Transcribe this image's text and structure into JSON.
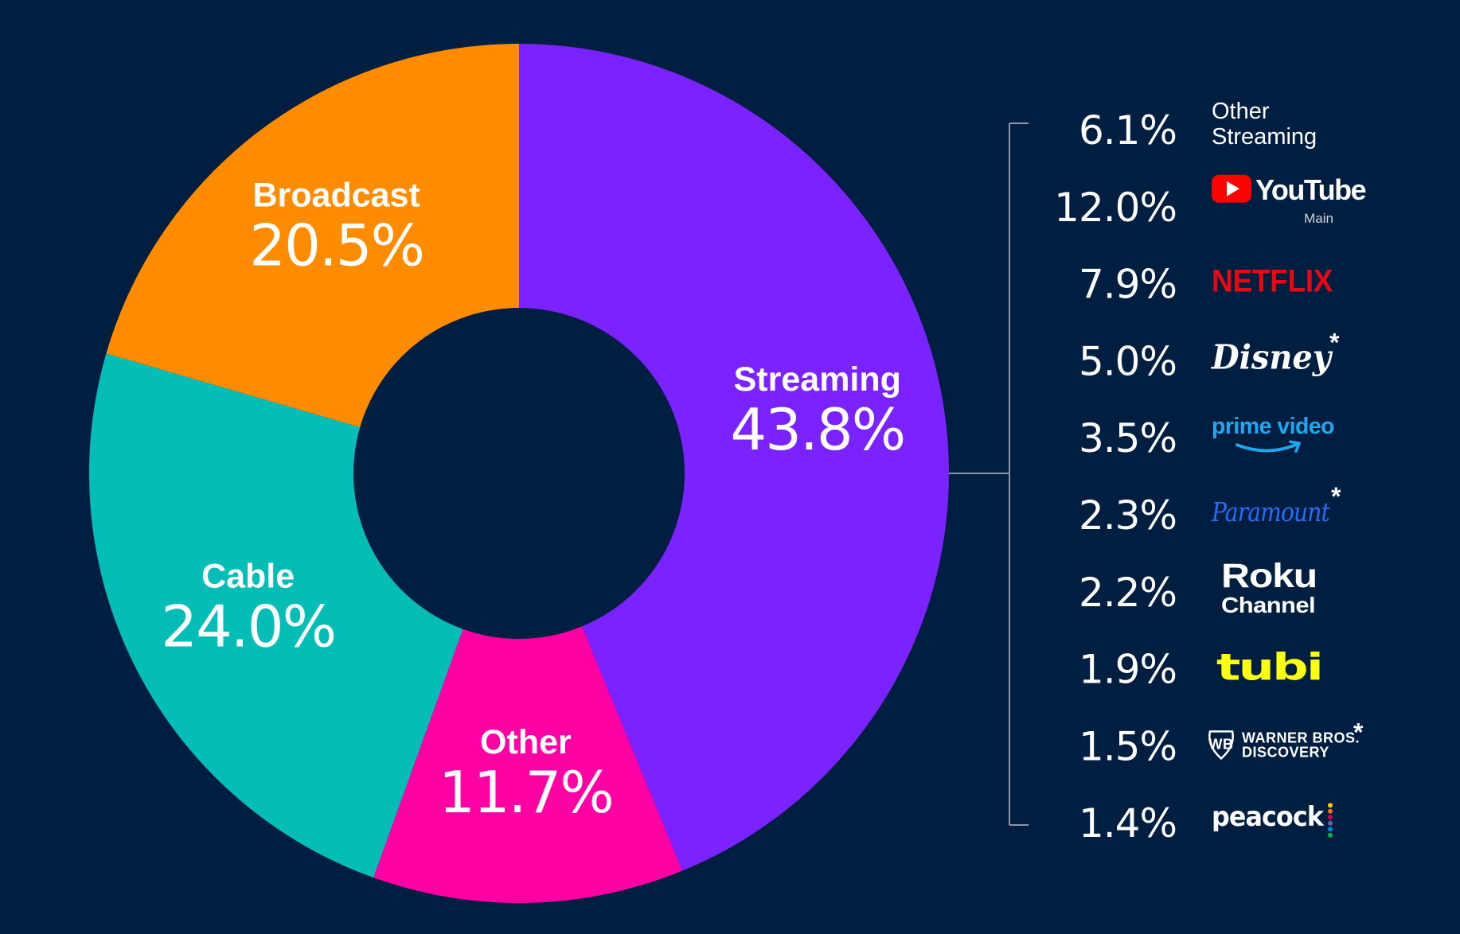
{
  "colors": {
    "background": "#001E40",
    "streaming": "#7A22FF",
    "other": "#FF00A4",
    "cable": "#04BDB7",
    "broadcast": "#FF8C00",
    "bracket": "#8A98AE"
  },
  "chart_data": {
    "type": "pie",
    "style": "donut",
    "start": "top",
    "direction": "clockwise",
    "slices": [
      {
        "label": "Streaming",
        "value": 43.8,
        "display": "43.8%",
        "color": "#7A22FF"
      },
      {
        "label": "Other",
        "value": 11.7,
        "display": "11.7%",
        "color": "#FF00A4"
      },
      {
        "label": "Cable",
        "value": 24.0,
        "display": "24.0%",
        "color": "#04BDB7"
      },
      {
        "label": "Broadcast",
        "value": 20.5,
        "display": "20.5%",
        "color": "#FF8C00"
      }
    ],
    "breakdown_of": "Streaming",
    "breakdown": [
      {
        "value": 6.1,
        "display": "6.1%",
        "name": "Other Streaming",
        "name_lines": [
          "Other",
          "Streaming"
        ],
        "logo": "text"
      },
      {
        "value": 12.0,
        "display": "12.0%",
        "name": "YouTube",
        "sub": "Main",
        "logo": "youtube-logo"
      },
      {
        "value": 7.9,
        "display": "7.9%",
        "name": "NETFLIX",
        "logo": "netflix-logo"
      },
      {
        "value": 5.0,
        "display": "5.0%",
        "name": "Disney",
        "asterisk": "*",
        "logo": "disney-logo"
      },
      {
        "value": 3.5,
        "display": "3.5%",
        "name": "prime video",
        "logo": "prime-video-logo"
      },
      {
        "value": 2.3,
        "display": "2.3%",
        "name": "Paramount",
        "asterisk": "*",
        "logo": "paramount-logo"
      },
      {
        "value": 2.2,
        "display": "2.2%",
        "name": "Roku",
        "sub": "Channel",
        "logo": "roku-channel-logo"
      },
      {
        "value": 1.9,
        "display": "1.9%",
        "name": "tubi",
        "logo": "tubi-logo"
      },
      {
        "value": 1.5,
        "display": "1.5%",
        "name_lines": [
          "WARNER BROS.",
          "DISCOVERY"
        ],
        "asterisk": "*",
        "logo": "warner-bros-discovery-logo"
      },
      {
        "value": 1.4,
        "display": "1.4%",
        "name": "peacock",
        "logo": "peacock-logo"
      }
    ]
  }
}
